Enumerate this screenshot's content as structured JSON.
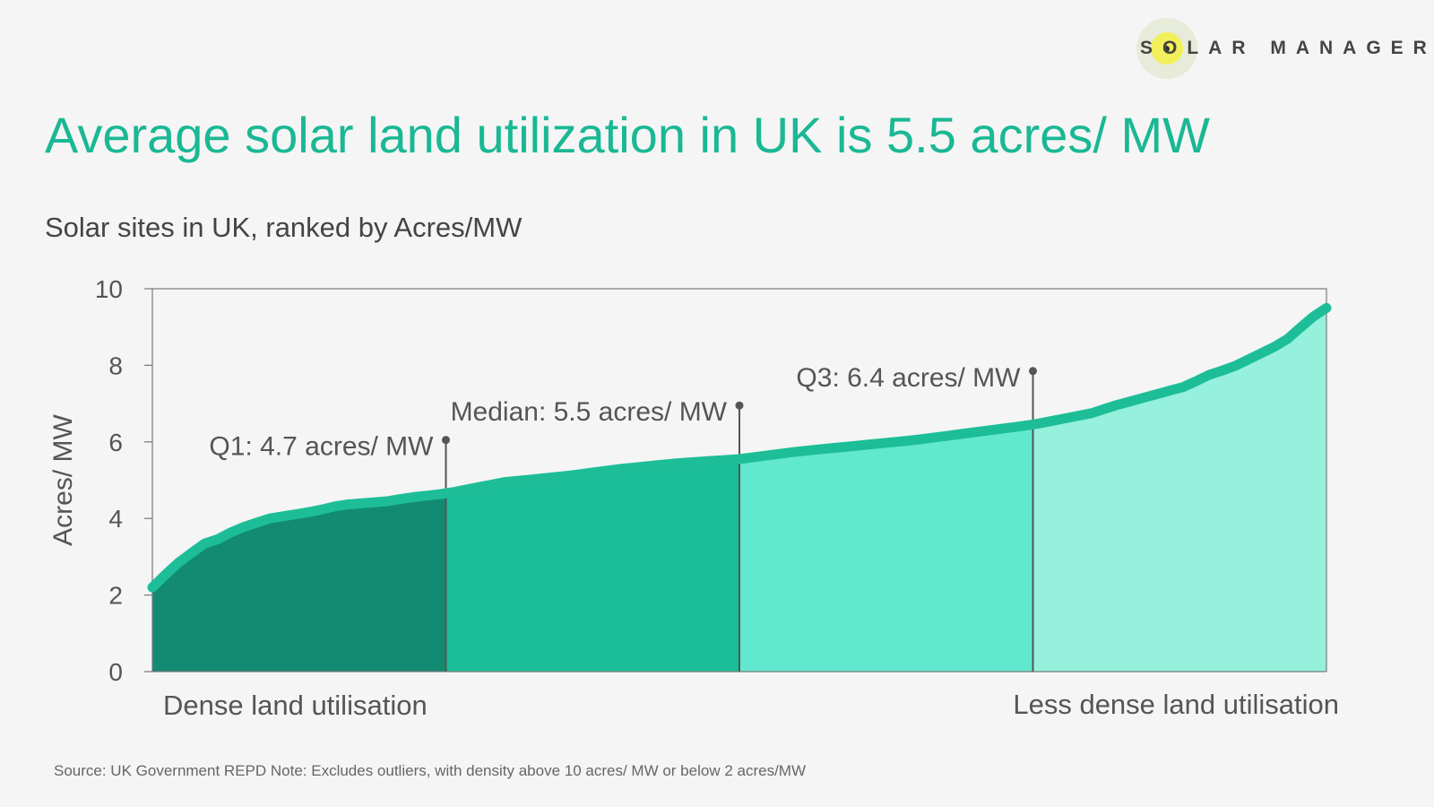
{
  "brand": {
    "name": "SOLAR MANAGER",
    "colors": {
      "sun": "#f2f05a",
      "halo": "#e6ecd9",
      "text": "#444444"
    }
  },
  "headline": "Average solar land utilization in UK is 5.5 acres/ MW",
  "subtitle": "Solar sites in UK, ranked by Acres/MW",
  "source_note": "Source: UK Government REPD Note: Excludes outliers, with density above 10 acres/ MW or  below 2 acres/MW",
  "chart_data": {
    "type": "area",
    "title": "",
    "xlabel": "",
    "ylabel": "Acres/ MW",
    "ylim": [
      0,
      10
    ],
    "yticks": [
      "0",
      "2",
      "4",
      "6",
      "8",
      "10"
    ],
    "xlim": [
      0,
      100
    ],
    "grid": false,
    "x_end_labels": {
      "left": "Dense land utilisation",
      "right": "Less dense land utilisation"
    },
    "quartile_markers": [
      {
        "x": 25,
        "label": "Q1: 4.7 acres/ MW",
        "value": 4.7
      },
      {
        "x": 50,
        "label": "Median: 5.5 acres/ MW",
        "value": 5.5
      },
      {
        "x": 75,
        "label": "Q3: 6.4 acres/ MW",
        "value": 6.4
      }
    ],
    "colors": {
      "line": "#1dbe97",
      "q1": "#138b73",
      "q2": "#1bbd99",
      "q3": "#63e8d0",
      "q4": "#95f0dc",
      "title": "#1ab894"
    },
    "series": [
      {
        "x": [
          0,
          1,
          2,
          3,
          4,
          5,
          6,
          7,
          8,
          9,
          10,
          12,
          14,
          16,
          18,
          20,
          22,
          25,
          30,
          35,
          40,
          45,
          50,
          55,
          60,
          65,
          70,
          75,
          80,
          82,
          85,
          88,
          90,
          92,
          94,
          95,
          96,
          97,
          98,
          99,
          100
        ],
        "y": [
          2.2,
          2.5,
          2.8,
          3.0,
          3.3,
          3.4,
          3.5,
          3.7,
          3.8,
          3.9,
          4.0,
          4.1,
          4.2,
          4.35,
          4.4,
          4.45,
          4.55,
          4.65,
          4.95,
          5.1,
          5.3,
          5.45,
          5.55,
          5.75,
          5.9,
          6.05,
          6.25,
          6.45,
          6.75,
          6.95,
          7.2,
          7.45,
          7.75,
          7.95,
          8.25,
          8.4,
          8.55,
          8.75,
          9.05,
          9.3,
          9.5
        ]
      }
    ]
  }
}
